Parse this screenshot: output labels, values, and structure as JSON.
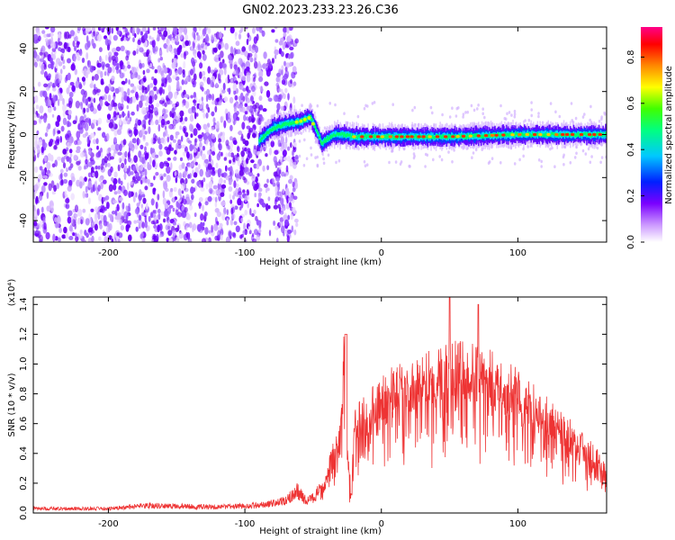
{
  "title": "GN02.2023.233.23.26.C36",
  "chart_data": [
    {
      "type": "heatmap",
      "title": "GN02.2023.233.23.26.C36",
      "xlabel": "Height of straight line (km)",
      "ylabel": "Frequency (Hz)",
      "xlim": [
        -255,
        165
      ],
      "ylim": [
        -50,
        50
      ],
      "x_ticks": [
        -200,
        -100,
        0,
        100
      ],
      "y_ticks": [
        -40,
        -20,
        0,
        20,
        40
      ],
      "colorbar": {
        "label": "Normalized spectral amplitude",
        "range": [
          0,
          0.93
        ],
        "ticks": [
          0.0,
          0.2,
          0.4,
          0.6,
          0.8
        ],
        "colormap": [
          "#ffffff",
          "#b070ff",
          "#6000ff",
          "#0030ff",
          "#00e0ff",
          "#00ff40",
          "#ffff00",
          "#ff8000",
          "#ff0000",
          "#ff0080"
        ]
      },
      "noise_region_x": [
        -255,
        -62
      ],
      "signal_ridge": {
        "x": [
          -90,
          -80,
          -70,
          -60,
          -52,
          -48,
          -44,
          -40,
          -35,
          -30,
          -20,
          0,
          50,
          100,
          165
        ],
        "y": [
          -3,
          3,
          5,
          6,
          8,
          2,
          -4,
          -2,
          0,
          0,
          -1,
          -1,
          -1,
          0,
          0
        ]
      },
      "grid": false
    },
    {
      "type": "line",
      "xlabel": "Height of straight line (km)",
      "ylabel": "SNR (10 * v/v)",
      "y_multiplier": "(x10⁴)",
      "xlim": [
        -255,
        165
      ],
      "ylim": [
        0,
        1.45
      ],
      "x_ticks": [
        -200,
        -100,
        0,
        100
      ],
      "y_ticks": [
        0.0,
        0.2,
        0.4,
        0.6,
        0.8,
        1.0,
        1.2,
        1.4
      ],
      "series": [
        {
          "color": "#ee3333",
          "x": [
            -255,
            -200,
            -170,
            -120,
            -90,
            -70,
            -62,
            -55,
            -50,
            -45,
            -40,
            -35,
            -30,
            -27,
            -25,
            -22,
            -20,
            -15,
            -10,
            -5,
            0,
            10,
            20,
            30,
            40,
            50,
            60,
            70,
            80,
            90,
            100,
            110,
            120,
            130,
            140,
            150,
            160,
            165
          ],
          "y": [
            0.03,
            0.03,
            0.05,
            0.04,
            0.05,
            0.08,
            0.15,
            0.08,
            0.1,
            0.15,
            0.25,
            0.4,
            0.5,
            1.2,
            0.4,
            0.1,
            0.55,
            0.6,
            0.62,
            0.68,
            0.72,
            0.78,
            0.8,
            0.85,
            0.88,
            0.9,
            0.9,
            0.88,
            0.85,
            0.8,
            0.75,
            0.68,
            0.62,
            0.55,
            0.48,
            0.4,
            0.32,
            0.25
          ]
        }
      ],
      "grid": false
    }
  ]
}
